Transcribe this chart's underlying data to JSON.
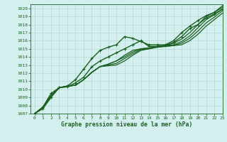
{
  "title": "Graphe pression niveau de la mer (hPa)",
  "bg_color": "#d4f0ee",
  "grid_color": "#b8d8d4",
  "line_color": "#1a6020",
  "xlim": [
    -0.5,
    23
  ],
  "ylim": [
    1007,
    1020.5
  ],
  "xticks": [
    0,
    1,
    2,
    3,
    4,
    5,
    6,
    7,
    8,
    9,
    10,
    11,
    12,
    13,
    14,
    15,
    16,
    17,
    18,
    19,
    20,
    21,
    22,
    23
  ],
  "yticks": [
    1007,
    1008,
    1009,
    1010,
    1011,
    1012,
    1013,
    1014,
    1015,
    1016,
    1017,
    1018,
    1019,
    1020
  ],
  "series": [
    {
      "x": [
        0,
        1,
        2,
        3,
        4,
        5,
        6,
        7,
        8,
        9,
        10,
        11,
        12,
        13,
        14,
        15,
        16,
        17,
        18,
        19,
        20,
        21,
        22,
        23
      ],
      "y": [
        1007.0,
        1007.8,
        1009.2,
        1010.2,
        1010.4,
        1010.5,
        1011.2,
        1012.1,
        1012.8,
        1013.1,
        1013.5,
        1014.2,
        1014.8,
        1015.0,
        1015.1,
        1015.3,
        1015.4,
        1015.7,
        1016.2,
        1017.0,
        1018.0,
        1019.0,
        1019.5,
        1020.1
      ],
      "marker": null,
      "lw": 0.9
    },
    {
      "x": [
        0,
        1,
        2,
        3,
        4,
        5,
        6,
        7,
        8,
        9,
        10,
        11,
        12,
        13,
        14,
        15,
        16,
        17,
        18,
        19,
        20,
        21,
        22,
        23
      ],
      "y": [
        1007.0,
        1007.8,
        1009.2,
        1010.2,
        1010.4,
        1010.5,
        1011.2,
        1012.1,
        1012.8,
        1013.1,
        1013.5,
        1014.0,
        1014.6,
        1015.0,
        1015.1,
        1015.3,
        1015.4,
        1015.5,
        1015.9,
        1016.6,
        1017.6,
        1018.6,
        1019.2,
        1019.9
      ],
      "marker": null,
      "lw": 0.9
    },
    {
      "x": [
        0,
        1,
        2,
        3,
        4,
        5,
        6,
        7,
        8,
        9,
        10,
        11,
        12,
        13,
        14,
        15,
        16,
        17,
        18,
        19,
        20,
        21,
        22,
        23
      ],
      "y": [
        1007.0,
        1007.8,
        1009.2,
        1010.2,
        1010.4,
        1010.5,
        1011.2,
        1012.1,
        1012.8,
        1013.0,
        1013.2,
        1013.8,
        1014.4,
        1014.9,
        1015.0,
        1015.2,
        1015.3,
        1015.4,
        1015.7,
        1016.3,
        1017.2,
        1018.2,
        1018.9,
        1019.7
      ],
      "marker": null,
      "lw": 0.9
    },
    {
      "x": [
        0,
        1,
        2,
        3,
        4,
        5,
        6,
        7,
        8,
        9,
        10,
        11,
        12,
        13,
        14,
        15,
        16,
        17,
        18,
        19,
        20,
        21,
        22,
        23
      ],
      "y": [
        1007.0,
        1007.8,
        1009.2,
        1010.2,
        1010.4,
        1010.5,
        1011.2,
        1012.1,
        1012.8,
        1012.9,
        1013.0,
        1013.5,
        1014.2,
        1014.8,
        1015.0,
        1015.2,
        1015.3,
        1015.4,
        1015.5,
        1016.0,
        1016.8,
        1017.8,
        1018.6,
        1019.4
      ],
      "marker": null,
      "lw": 0.9
    },
    {
      "x": [
        0,
        1,
        2,
        3,
        4,
        5,
        6,
        7,
        8,
        9,
        10,
        11,
        12,
        13,
        14,
        15,
        16,
        17,
        18,
        19,
        20,
        21,
        22,
        23
      ],
      "y": [
        1007.0,
        1007.8,
        1009.5,
        1010.2,
        1010.4,
        1011.2,
        1012.5,
        1013.8,
        1014.8,
        1015.2,
        1015.5,
        1016.5,
        1016.3,
        1015.9,
        1015.5,
        1015.5,
        1015.5,
        1016.0,
        1017.0,
        1017.8,
        1018.5,
        1019.1,
        1019.5,
        1020.3
      ],
      "marker": "+",
      "lw": 1.0
    },
    {
      "x": [
        0,
        1,
        2,
        3,
        4,
        5,
        6,
        7,
        8,
        9,
        10,
        11,
        12,
        13,
        14,
        15,
        16,
        17,
        18,
        19,
        20,
        21,
        22,
        23
      ],
      "y": [
        1007.0,
        1007.6,
        1009.0,
        1010.2,
        1010.3,
        1010.8,
        1011.5,
        1012.8,
        1013.5,
        1014.0,
        1014.5,
        1015.0,
        1015.5,
        1016.0,
        1015.3,
        1015.3,
        1015.4,
        1015.8,
        1016.5,
        1017.5,
        1018.0,
        1018.8,
        1019.3,
        1019.9
      ],
      "marker": "+",
      "lw": 1.0
    }
  ]
}
